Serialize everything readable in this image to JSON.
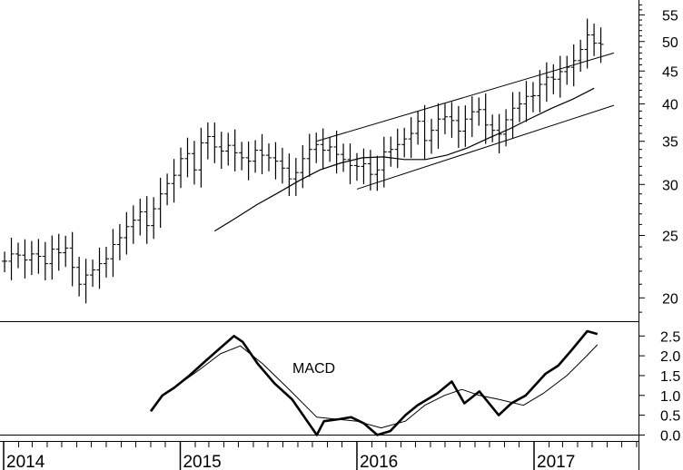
{
  "chart_data": [
    {
      "type": "line",
      "panel": "price",
      "variant": "bar-ohlc",
      "y_scale": "log",
      "ylim": [
        18.4,
        58
      ],
      "y_ticks": [
        "55",
        "50",
        "45",
        "40",
        "35",
        "30",
        "25",
        "20"
      ],
      "x_ticks": [
        "2014",
        "2015",
        "2016",
        "2017"
      ],
      "series": [
        {
          "style": "price bars",
          "x": [
            "2014-01-03",
            "2014-01-17",
            "2014-01-31",
            "2014-02-14",
            "2014-02-28",
            "2014-03-14",
            "2014-03-28",
            "2014-04-11",
            "2014-04-25",
            "2014-05-09",
            "2014-05-23",
            "2014-06-06",
            "2014-06-20",
            "2014-07-04",
            "2014-07-18",
            "2014-08-01",
            "2014-08-15",
            "2014-08-29",
            "2014-09-12",
            "2014-09-26",
            "2014-10-10",
            "2014-10-24",
            "2014-11-07",
            "2014-11-21",
            "2014-12-05",
            "2014-12-19",
            "2015-01-02",
            "2015-01-16",
            "2015-01-30",
            "2015-02-13",
            "2015-02-27",
            "2015-03-13",
            "2015-03-27",
            "2015-04-10",
            "2015-04-24",
            "2015-05-08",
            "2015-05-22",
            "2015-06-05",
            "2015-06-19",
            "2015-07-03",
            "2015-07-17",
            "2015-07-31",
            "2015-08-14",
            "2015-08-28",
            "2015-09-11",
            "2015-09-25",
            "2015-10-09",
            "2015-10-23",
            "2015-11-06",
            "2015-11-20",
            "2015-12-04",
            "2015-12-18",
            "2016-01-01",
            "2016-01-15",
            "2016-01-29",
            "2016-02-12",
            "2016-02-26",
            "2016-03-11",
            "2016-03-25",
            "2016-04-08",
            "2016-04-22",
            "2016-05-06",
            "2016-05-20",
            "2016-06-03",
            "2016-06-17",
            "2016-07-01",
            "2016-07-15",
            "2016-07-29",
            "2016-08-12",
            "2016-08-26",
            "2016-09-09",
            "2016-09-23",
            "2016-10-07",
            "2016-10-21",
            "2016-11-04",
            "2016-11-18",
            "2016-12-02",
            "2016-12-16",
            "2016-12-30",
            "2017-01-13",
            "2017-01-27",
            "2017-02-10",
            "2017-02-24",
            "2017-03-10",
            "2017-03-24",
            "2017-04-07",
            "2017-04-21",
            "2017-05-05",
            "2017-05-19"
          ],
          "close": [
            22.8,
            23.4,
            23.3,
            22.9,
            23.4,
            23.2,
            22.6,
            23.8,
            23.5,
            23.9,
            22.3,
            21.0,
            21.7,
            22.1,
            22.6,
            23.0,
            24.2,
            24.8,
            25.8,
            26.4,
            27.2,
            25.9,
            27.5,
            29.0,
            30.1,
            31.0,
            32.9,
            33.5,
            31.6,
            34.8,
            35.6,
            34.3,
            33.8,
            34.5,
            33.6,
            33.0,
            32.6,
            33.9,
            33.3,
            33.0,
            32.6,
            31.8,
            30.6,
            31.3,
            32.9,
            34.0,
            34.6,
            33.9,
            34.3,
            33.4,
            32.8,
            32.1,
            32.0,
            32.3,
            31.1,
            31.6,
            33.7,
            34.0,
            34.6,
            35.3,
            36.0,
            37.6,
            35.1,
            36.4,
            37.9,
            38.2,
            37.7,
            36.3,
            37.9,
            38.9,
            39.2,
            37.1,
            36.4,
            35.9,
            37.8,
            39.4,
            40.0,
            41.1,
            41.2,
            42.9,
            44.0,
            43.7,
            44.9,
            45.6,
            46.7,
            48.6,
            51.2,
            49.7,
            49.5
          ]
        },
        {
          "style": "moving average",
          "x_start": "2015-03-13",
          "x_end": "2017-05-05",
          "values": [
            25.4,
            26.6,
            27.9,
            29.1,
            30.4,
            31.6,
            32.4,
            33.0,
            33.1,
            32.8,
            32.8,
            33.3,
            34.2,
            35.4,
            36.6,
            38.0,
            39.4,
            40.7,
            42.3
          ]
        }
      ],
      "channel_lines": [
        {
          "x": [
            "2015-10-09",
            "2017-06-15"
          ],
          "y": [
            35.0,
            48.0
          ]
        },
        {
          "x": [
            "2016-01-01",
            "2017-06-15"
          ],
          "y": [
            29.5,
            39.8
          ]
        }
      ]
    },
    {
      "type": "line",
      "panel": "indicator",
      "label": "MACD",
      "ylim": [
        -0.15,
        2.85
      ],
      "y_ticks": [
        "2.5",
        "2.0",
        "1.5",
        "1.0",
        "0.5",
        "0.0"
      ],
      "series": [
        {
          "style": "thick",
          "x": [
            "2014-11-01",
            "2014-11-25",
            "2014-12-20",
            "2015-01-20",
            "2015-02-25",
            "2015-03-25",
            "2015-04-22",
            "2015-05-10",
            "2015-06-10",
            "2015-07-15",
            "2015-08-20",
            "2015-10-10",
            "2015-10-25",
            "2015-11-25",
            "2015-12-20",
            "2016-01-15",
            "2016-02-12",
            "2016-03-10",
            "2016-04-10",
            "2016-05-05",
            "2016-06-15",
            "2016-07-15",
            "2016-08-10",
            "2016-09-10",
            "2016-10-20",
            "2016-11-15",
            "2016-12-15",
            "2017-01-25",
            "2017-02-20",
            "2017-03-20",
            "2017-04-21",
            "2017-05-12"
          ],
          "values": [
            0.6,
            1.0,
            1.2,
            1.5,
            1.9,
            2.2,
            2.5,
            2.35,
            1.8,
            1.3,
            0.9,
            0.0,
            0.35,
            0.4,
            0.45,
            0.3,
            0.0,
            0.1,
            0.5,
            0.75,
            1.05,
            1.35,
            0.8,
            1.1,
            0.5,
            0.8,
            1.0,
            1.55,
            1.75,
            2.15,
            2.62,
            2.55
          ]
        },
        {
          "style": "thin",
          "x": [
            "2014-12-20",
            "2015-02-10",
            "2015-03-25",
            "2015-05-05",
            "2015-06-20",
            "2015-08-10",
            "2015-10-10",
            "2015-11-20",
            "2016-01-01",
            "2016-02-20",
            "2016-04-10",
            "2016-05-20",
            "2016-06-30",
            "2016-08-05",
            "2016-09-10",
            "2016-10-20",
            "2016-12-10",
            "2017-01-20",
            "2017-03-10",
            "2017-04-20",
            "2017-05-12"
          ],
          "values": [
            1.2,
            1.65,
            2.05,
            2.25,
            1.8,
            1.2,
            0.45,
            0.4,
            0.35,
            0.18,
            0.35,
            0.75,
            1.0,
            1.15,
            1.0,
            0.9,
            0.75,
            1.05,
            1.5,
            2.0,
            2.28
          ]
        }
      ]
    }
  ]
}
